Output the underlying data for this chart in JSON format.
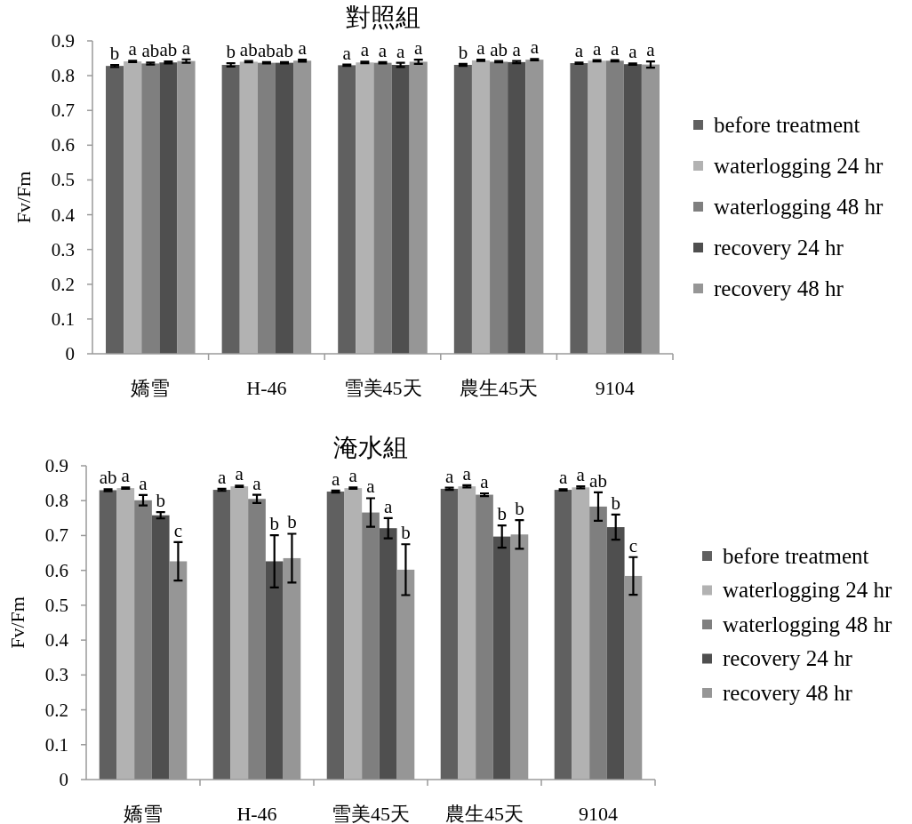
{
  "chart_data": [
    {
      "type": "bar",
      "title": "對照組",
      "ylabel": "Fv/Fm",
      "categories": [
        "嬌雪",
        "H-46",
        "雪美45天",
        "農生45天",
        "9104"
      ],
      "ylim": [
        0,
        0.9
      ],
      "yticks": [
        0,
        0.1,
        0.2,
        0.3,
        0.4,
        0.5,
        0.6,
        0.7,
        0.8,
        0.9
      ],
      "legend": "right",
      "series": [
        {
          "name": "before treatment",
          "color": "#606060",
          "values": [
            0.828,
            0.831,
            0.83,
            0.831,
            0.836
          ],
          "errors": [
            0.003,
            0.005,
            0.002,
            0.003,
            0.002
          ],
          "value_labels": [
            "b",
            "b",
            "a",
            "b",
            "a"
          ]
        },
        {
          "name": "waterlogging 24 hr",
          "color": "#b2b2b2",
          "values": [
            0.841,
            0.84,
            0.838,
            0.844,
            0.843
          ],
          "errors": [
            0.002,
            0.002,
            0.002,
            0.002,
            0.002
          ],
          "value_labels": [
            "a",
            "ab",
            "a",
            "a",
            "a"
          ]
        },
        {
          "name": "waterlogging 48 hr",
          "color": "#7f7f7f",
          "values": [
            0.835,
            0.837,
            0.837,
            0.84,
            0.843
          ],
          "errors": [
            0.003,
            0.002,
            0.002,
            0.002,
            0.002
          ],
          "value_labels": [
            "ab",
            "ab",
            "a",
            "ab",
            "a"
          ]
        },
        {
          "name": "recovery 24 hr",
          "color": "#4f4f4f",
          "values": [
            0.838,
            0.837,
            0.831,
            0.839,
            0.833
          ],
          "errors": [
            0.003,
            0.002,
            0.006,
            0.003,
            0.002
          ],
          "value_labels": [
            "ab",
            "ab",
            "a",
            "a",
            "a"
          ]
        },
        {
          "name": "recovery 48 hr",
          "color": "#969696",
          "values": [
            0.842,
            0.843,
            0.84,
            0.846,
            0.832
          ],
          "errors": [
            0.005,
            0.003,
            0.006,
            0.002,
            0.009
          ],
          "value_labels": [
            "a",
            "a",
            "a",
            "a",
            "a"
          ]
        }
      ]
    },
    {
      "type": "bar",
      "title": "淹水組",
      "ylabel": "Fv/Fm",
      "categories": [
        "嬌雪",
        "H-46",
        "雪美45天",
        "農生45天",
        "9104"
      ],
      "ylim": [
        0,
        0.9
      ],
      "yticks": [
        0,
        0.1,
        0.2,
        0.3,
        0.4,
        0.5,
        0.6,
        0.7,
        0.8,
        0.9
      ],
      "legend": "right",
      "series": [
        {
          "name": "before treatment",
          "color": "#606060",
          "values": [
            0.83,
            0.831,
            0.826,
            0.834,
            0.831
          ],
          "errors": [
            0.003,
            0.003,
            0.003,
            0.003,
            0.002
          ],
          "value_labels": [
            "ab",
            "a",
            "a",
            "a",
            "a"
          ]
        },
        {
          "name": "waterlogging 24 hr",
          "color": "#b2b2b2",
          "values": [
            0.836,
            0.841,
            0.836,
            0.841,
            0.838
          ],
          "errors": [
            0.002,
            0.002,
            0.002,
            0.003,
            0.003
          ],
          "value_labels": [
            "a",
            "a",
            "a",
            "a",
            "a"
          ]
        },
        {
          "name": "waterlogging 48 hr",
          "color": "#7f7f7f",
          "values": [
            0.801,
            0.805,
            0.766,
            0.817,
            0.783
          ],
          "errors": [
            0.015,
            0.012,
            0.041,
            0.004,
            0.041
          ],
          "value_labels": [
            "a",
            "a",
            "a",
            "a",
            "ab"
          ]
        },
        {
          "name": "recovery 24 hr",
          "color": "#4f4f4f",
          "values": [
            0.758,
            0.626,
            0.721,
            0.697,
            0.724
          ],
          "errors": [
            0.009,
            0.075,
            0.029,
            0.032,
            0.036
          ],
          "value_labels": [
            "b",
            "b",
            "a",
            "b",
            "b"
          ]
        },
        {
          "name": "recovery 48 hr",
          "color": "#969696",
          "values": [
            0.626,
            0.635,
            0.602,
            0.703,
            0.584
          ],
          "errors": [
            0.055,
            0.07,
            0.073,
            0.041,
            0.054
          ],
          "value_labels": [
            "c",
            "b",
            "b",
            "b",
            "c"
          ]
        }
      ]
    }
  ]
}
